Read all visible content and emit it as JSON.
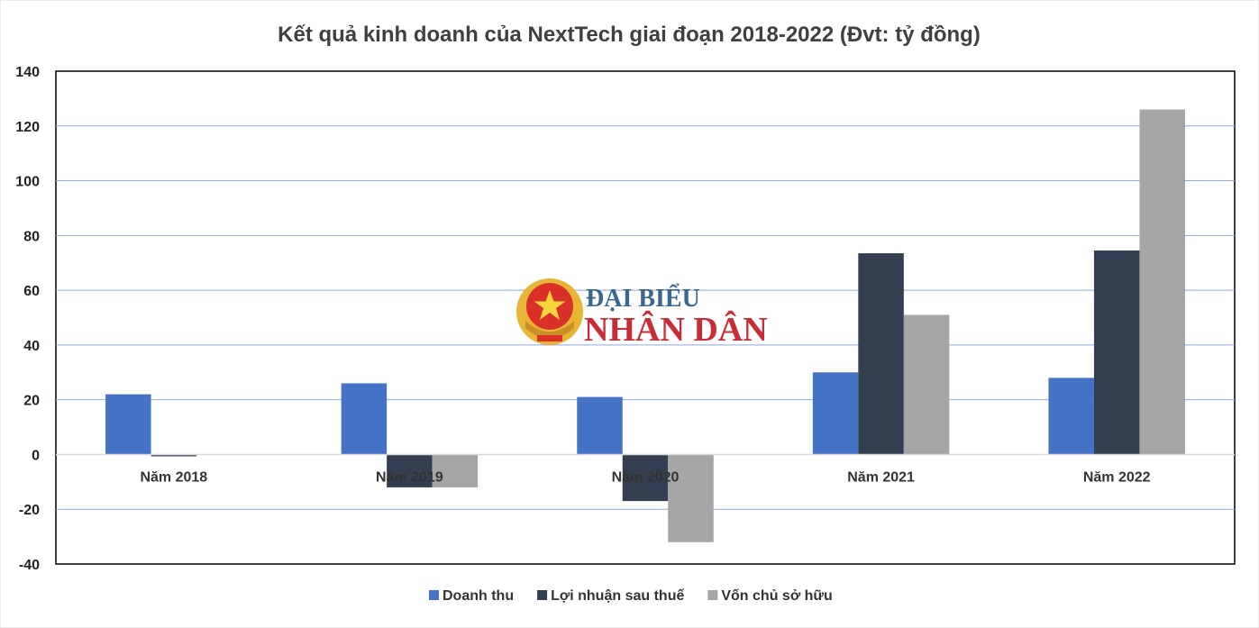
{
  "chart_data": {
    "type": "bar",
    "title": "Kết quả kinh doanh của NextTech giai đoạn 2018-2022 (Đvt: tỷ đồng)",
    "categories": [
      "Năm 2018",
      "Năm 2019",
      "Năm 2020",
      "Năm 2021",
      "Năm 2022"
    ],
    "series": [
      {
        "name": "Doanh thu",
        "color": "#4472C4",
        "values": [
          22,
          26,
          21,
          30,
          28
        ]
      },
      {
        "name": "Lợi nhuận sau thuế",
        "color": "#333F50",
        "values": [
          -0.5,
          -12,
          -17,
          73.5,
          74.5
        ]
      },
      {
        "name": "Vốn chủ sở hữu",
        "color": "#A5A5A5",
        "values": [
          0,
          -12,
          -32,
          51,
          126
        ]
      }
    ],
    "ylim": [
      -40,
      140
    ],
    "yticks": [
      140,
      120,
      100,
      80,
      60,
      40,
      20,
      0,
      -20,
      -40
    ],
    "grid": true,
    "legend_position": "bottom"
  },
  "watermark": {
    "line1": "ĐẠI BIỂU",
    "line2": "NHÂN DÂN"
  }
}
